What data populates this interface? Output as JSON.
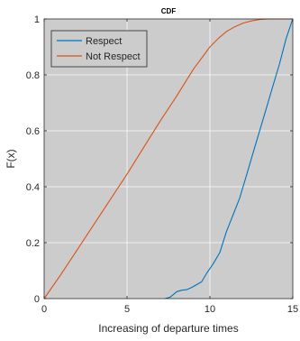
{
  "chart_data": {
    "type": "line",
    "title": "CDF",
    "xlabel": "Increasing of departure times",
    "ylabel": "F(x)",
    "xlim": [
      0,
      15
    ],
    "ylim": [
      0,
      1
    ],
    "xticks": [
      "0",
      "5",
      "10",
      "15"
    ],
    "yticks": [
      "0",
      "0.2",
      "0.4",
      "0.6",
      "0.8",
      "1"
    ],
    "xtick_values": [
      0,
      5,
      10,
      15
    ],
    "ytick_values": [
      0,
      0.2,
      0.4,
      0.6,
      0.8,
      1
    ],
    "grid": true,
    "legend_position": "top-left",
    "background_color": "#cccccc",
    "series": [
      {
        "name": "Respect",
        "color": "#0072bd",
        "x": [
          7.3,
          7.6,
          7.8,
          7.9,
          8.0,
          8.3,
          8.6,
          8.9,
          9.2,
          9.5,
          9.8,
          10.2,
          10.6,
          11.0,
          11.4,
          11.8,
          12.2,
          12.6,
          13.0,
          13.4,
          13.8,
          14.2,
          14.6,
          15.0
        ],
        "y": [
          0.0,
          0.005,
          0.015,
          0.02,
          0.025,
          0.03,
          0.032,
          0.04,
          0.05,
          0.06,
          0.09,
          0.125,
          0.165,
          0.24,
          0.3,
          0.36,
          0.44,
          0.52,
          0.6,
          0.68,
          0.76,
          0.84,
          0.93,
          1.0
        ]
      },
      {
        "name": "Not Respect",
        "color": "#d95319",
        "x": [
          0.0,
          1.0,
          2.0,
          3.0,
          4.0,
          5.0,
          6.0,
          7.0,
          8.0,
          9.0,
          10.0,
          10.5,
          11.0,
          11.5,
          12.0,
          12.5,
          13.0,
          13.5,
          14.0,
          15.0
        ],
        "y": [
          0.0,
          0.085,
          0.175,
          0.265,
          0.355,
          0.445,
          0.54,
          0.635,
          0.725,
          0.82,
          0.9,
          0.93,
          0.955,
          0.972,
          0.985,
          0.993,
          0.998,
          1.0,
          1.0,
          1.0
        ]
      }
    ]
  }
}
